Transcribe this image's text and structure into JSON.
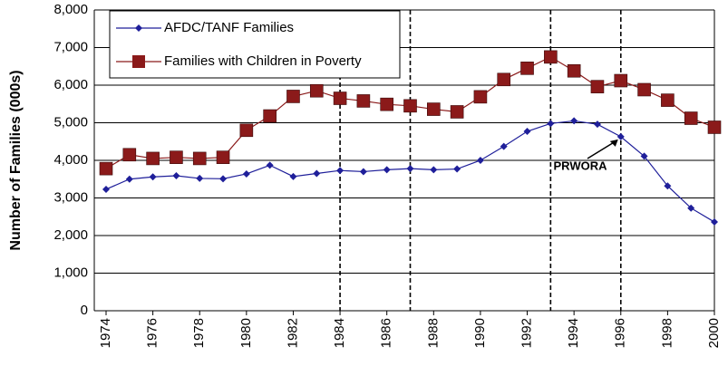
{
  "chart_data": {
    "type": "line",
    "y_label": "Number of Families (000s)",
    "x": [
      1974,
      1975,
      1976,
      1977,
      1978,
      1979,
      1980,
      1981,
      1982,
      1983,
      1984,
      1985,
      1986,
      1987,
      1988,
      1989,
      1990,
      1991,
      1992,
      1993,
      1994,
      1995,
      1996,
      1997,
      1998,
      1999,
      2000
    ],
    "series": [
      {
        "name": "AFDC/TANF Families",
        "color": "#1f1f9a",
        "marker": "diamond",
        "values": [
          3230,
          3500,
          3560,
          3590,
          3520,
          3510,
          3640,
          3870,
          3570,
          3650,
          3730,
          3700,
          3750,
          3780,
          3750,
          3770,
          4000,
          4370,
          4770,
          4980,
          5050,
          4960,
          4630,
          4110,
          3320,
          2730,
          2360
        ]
      },
      {
        "name": "Families with Children in Poverty",
        "color": "#8b1a1a",
        "marker": "square",
        "values": [
          3780,
          4150,
          4050,
          4080,
          4050,
          4080,
          4800,
          5180,
          5700,
          5850,
          5650,
          5580,
          5490,
          5450,
          5360,
          5290,
          5690,
          6150,
          6450,
          6750,
          6380,
          5960,
          6120,
          5880,
          5600,
          5120,
          4880
        ]
      }
    ],
    "xlim": [
      1974,
      2000
    ],
    "xticks": [
      1974,
      1976,
      1978,
      1980,
      1982,
      1984,
      1986,
      1988,
      1990,
      1992,
      1994,
      1996,
      1998,
      2000
    ],
    "ylim": [
      0,
      8000
    ],
    "yticks": [
      0,
      {
        "value": 1000,
        "label": "1,000"
      },
      {
        "value": 2000,
        "label": "2,000"
      },
      {
        "value": 3000,
        "label": "3,000"
      },
      {
        "value": 4000,
        "label": "4,000"
      },
      {
        "value": 5000,
        "label": "5,000"
      },
      {
        "value": 6000,
        "label": "6,000"
      },
      {
        "value": 7000,
        "label": "7,000"
      },
      {
        "value": 8000,
        "label": "8,000"
      }
    ],
    "grid": true,
    "event_lines": [
      1984,
      1987,
      1993,
      1996
    ],
    "annotation": {
      "text": "PRWORA",
      "x": 1996,
      "y": 4630
    }
  }
}
